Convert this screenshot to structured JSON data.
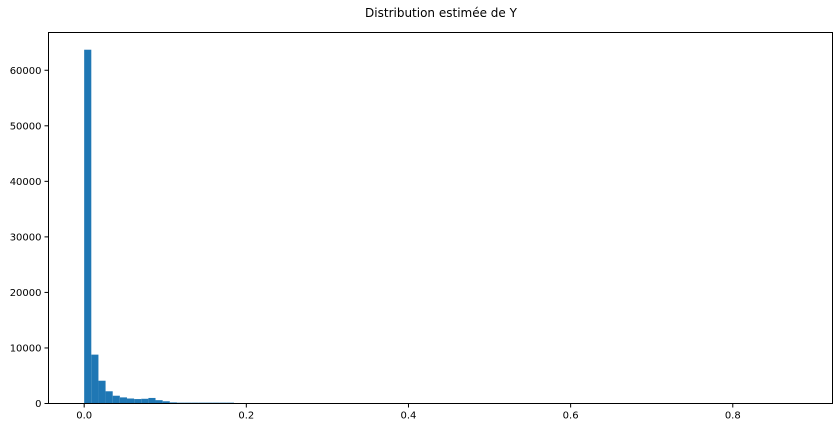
{
  "chart_data": {
    "type": "bar",
    "title": "Distribution estimée de Y",
    "xlabel": "",
    "ylabel": "",
    "xlim": [
      -0.044,
      0.923
    ],
    "ylim": [
      0,
      66800
    ],
    "x_ticks": [
      0.0,
      0.2,
      0.4,
      0.6,
      0.8
    ],
    "x_tick_labels": [
      "0.0",
      "0.2",
      "0.4",
      "0.6",
      "0.8"
    ],
    "y_ticks": [
      0,
      10000,
      20000,
      30000,
      40000,
      50000,
      60000
    ],
    "y_tick_labels": [
      "0",
      "10000",
      "20000",
      "30000",
      "40000",
      "50000",
      "60000"
    ],
    "bin_start": 0.0,
    "bin_width": 0.0088,
    "counts": [
      63700,
      8800,
      4100,
      2200,
      1400,
      1100,
      900,
      800,
      850,
      1000,
      600,
      400,
      200,
      150,
      150,
      150,
      150,
      150,
      150,
      150,
      150
    ],
    "grid": false,
    "legend": "none",
    "colors": {
      "bar": "#1f77b4",
      "axes": "#000000",
      "background": "#ffffff"
    }
  }
}
